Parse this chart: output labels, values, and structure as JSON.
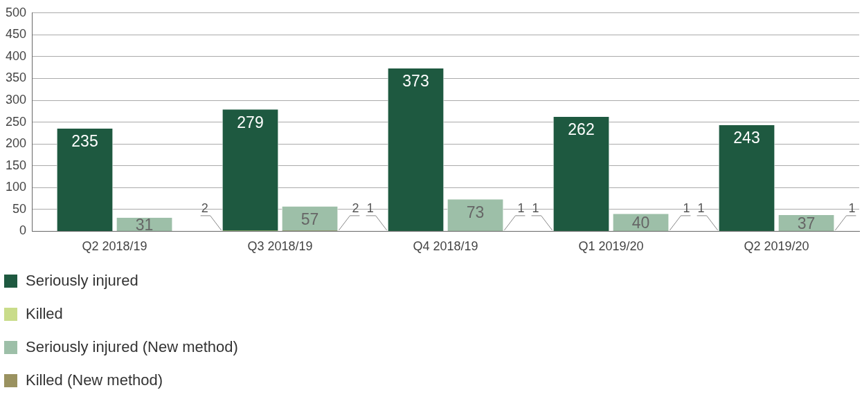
{
  "chart_data": {
    "type": "bar",
    "categories": [
      "Q2 2018/19",
      "Q3 2018/19",
      "Q4 2018/19",
      "Q1 2019/20",
      "Q2 2019/20"
    ],
    "series": [
      {
        "name": "Seriously injured",
        "color": "#1e5940",
        "values": [
          235,
          279,
          373,
          262,
          243
        ]
      },
      {
        "name": "Killed",
        "color": "#c9dc8a",
        "values": [
          null,
          2,
          1,
          1,
          1
        ]
      },
      {
        "name": "Seriously injured (New method)",
        "color": "#9dbfa8",
        "values": [
          31,
          57,
          73,
          40,
          37
        ]
      },
      {
        "name": "Killed (New method)",
        "color": "#9a9260",
        "values": [
          null,
          2,
          1,
          1,
          1
        ]
      }
    ],
    "ylim": [
      0,
      500
    ],
    "yticks": [
      0,
      50,
      100,
      150,
      200,
      250,
      300,
      350,
      400,
      450,
      500
    ],
    "grid": "y",
    "legend": "bottom",
    "data_labels": true
  }
}
